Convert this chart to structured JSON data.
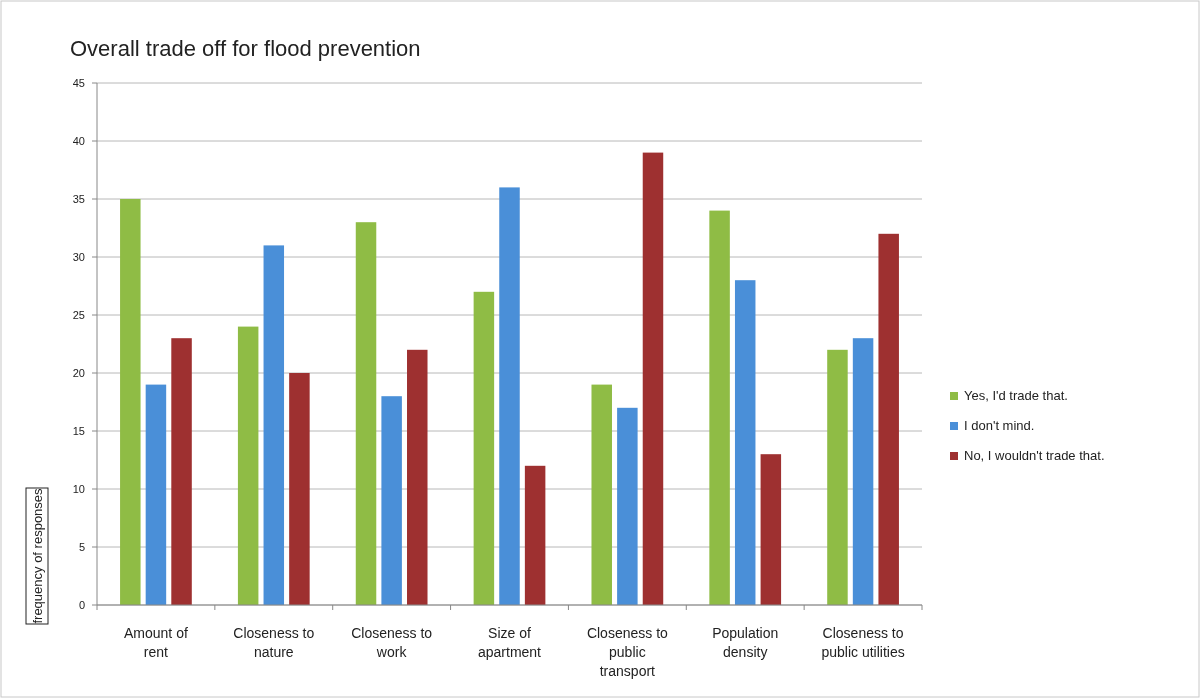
{
  "chart_data": {
    "type": "bar",
    "title": "Overall trade off for flood prevention",
    "ylabel": "frequency of responses",
    "categories": [
      "Amount of rent",
      "Closeness to nature",
      "Closeness to work",
      "Size of apartment",
      "Closeness to public transport",
      "Population density",
      "Closeness to public utilities"
    ],
    "series": [
      {
        "name": "Yes, I'd trade that.",
        "color": "#8fbc45",
        "values": [
          35,
          24,
          33,
          27,
          19,
          34,
          22
        ]
      },
      {
        "name": "I don't mind.",
        "color": "#4a8fd8",
        "values": [
          19,
          31,
          18,
          36,
          17,
          28,
          23
        ]
      },
      {
        "name": "No, I wouldn't trade that.",
        "color": "#9e3030",
        "values": [
          23,
          20,
          22,
          12,
          39,
          13,
          32
        ]
      }
    ],
    "ylim": [
      0,
      45
    ],
    "yticks": [
      0,
      5,
      10,
      15,
      20,
      25,
      30,
      35,
      40,
      45
    ],
    "grid": "y",
    "legend": "right"
  }
}
